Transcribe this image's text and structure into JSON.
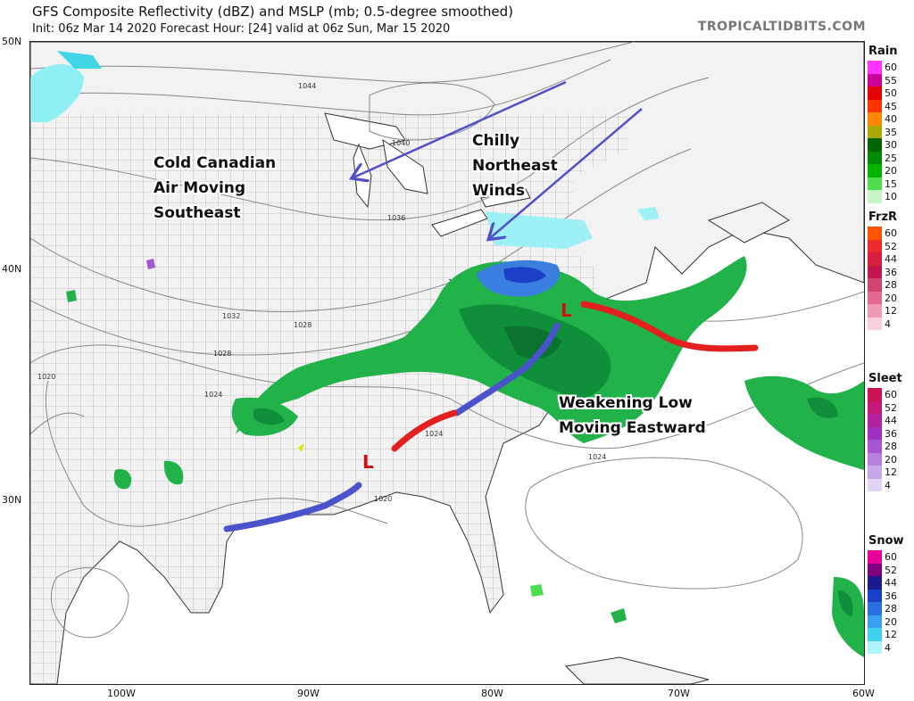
{
  "header": {
    "title": "GFS Composite Reflectivity (dBZ) and MSLP (mb; 0.5-degree smoothed)",
    "subtitle": "Init: 06z Mar 14 2020   Forecast Hour: [24]   valid at 06z Sun, Mar 15 2020",
    "brand": "TROPICALTIDBITS.COM"
  },
  "axes": {
    "lat_labels": [
      "50N",
      "40N",
      "30N"
    ],
    "lon_labels": [
      "100W",
      "90W",
      "80W",
      "70W",
      "60W"
    ]
  },
  "annotations": {
    "cold_air": [
      "Cold Canadian",
      "Air Moving",
      "Southeast"
    ],
    "winds": [
      "Chilly",
      "Northeast",
      "Winds"
    ],
    "low": [
      "Weakening Low",
      "Moving Eastward"
    ]
  },
  "low_symbols": {
    "label": "L",
    "color": "#cc1111"
  },
  "isobars": [
    "1044",
    "1040",
    "1036",
    "1032",
    "1032",
    "1028",
    "1028",
    "1024",
    "1024",
    "1024",
    "1020",
    "1020"
  ],
  "legend": {
    "rain": {
      "title": "Rain",
      "levels": [
        "60",
        "55",
        "50",
        "45",
        "40",
        "35",
        "30",
        "25",
        "20",
        "15",
        "10"
      ],
      "colors": [
        "#ff33ff",
        "#cc0099",
        "#e60000",
        "#ff3300",
        "#ff8800",
        "#a8a800",
        "#006400",
        "#008c00",
        "#00b400",
        "#4ddd4d",
        "#c8f5c8"
      ]
    },
    "frzr": {
      "title": "FrzR",
      "levels": [
        "60",
        "52",
        "44",
        "36",
        "28",
        "20",
        "12",
        "4"
      ],
      "colors": [
        "#ff5500",
        "#ee2a2a",
        "#d81e3c",
        "#c4154e",
        "#d04470",
        "#e06a90",
        "#ee9ab2",
        "#f8cfdc"
      ]
    },
    "sleet": {
      "title": "Sleet",
      "levels": [
        "60",
        "52",
        "44",
        "36",
        "28",
        "20",
        "12",
        "4"
      ],
      "colors": [
        "#cc1155",
        "#c2197a",
        "#b4219f",
        "#a12fc0",
        "#a657d0",
        "#b680dc",
        "#c8a9e8",
        "#e2d4f4"
      ]
    },
    "snow": {
      "title": "Snow",
      "levels": [
        "60",
        "52",
        "44",
        "36",
        "28",
        "20",
        "12",
        "4"
      ],
      "colors": [
        "#e60096",
        "#800080",
        "#1a1a8c",
        "#1a40c8",
        "#2a6fe0",
        "#3aa0f0",
        "#40d0f0",
        "#b0f4fa"
      ]
    }
  },
  "colors": {
    "cold_front": "#4a52cc",
    "warm_front": "#e41f1f",
    "arrow": "#5050c8",
    "land": "#f2f2f2"
  }
}
